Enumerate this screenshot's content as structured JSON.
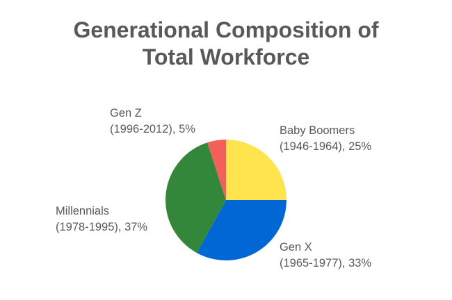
{
  "chart_data": {
    "type": "pie",
    "title": [
      "Generational Composition of",
      "Total Workforce"
    ],
    "slices": [
      {
        "name": "Baby Boomers",
        "years": "(1946-1964)",
        "value": 25,
        "percent_label": "25%",
        "color": "#FFE44D"
      },
      {
        "name": "Gen X",
        "years": "(1965-1977)",
        "value": 33,
        "percent_label": "33%",
        "color": "#0067D4"
      },
      {
        "name": "Millennials",
        "years": "(1978-1995)",
        "value": 37,
        "percent_label": "37%",
        "color": "#33873A"
      },
      {
        "name": "Gen Z",
        "years": "(1996-2012)",
        "value": 5,
        "percent_label": "5%",
        "color": "#F2605A"
      }
    ],
    "start_angle_deg": 0,
    "direction": "clockwise",
    "legend": "none"
  }
}
